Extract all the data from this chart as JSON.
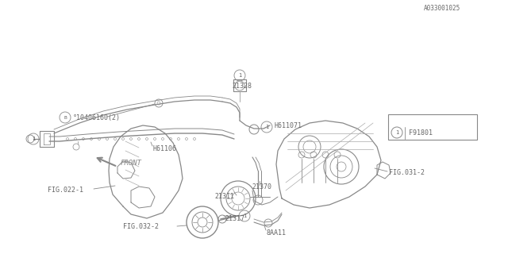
{
  "bg_color": "#ffffff",
  "line_color": "#aaaaaa",
  "dark_line": "#888888",
  "text_color": "#666666",
  "figsize": [
    6.4,
    3.2
  ],
  "dpi": 100,
  "labels": {
    "FIG032_2": "FIG.032-2",
    "8AA11": "8AA11",
    "21317": "21317",
    "FIG022_1": "FIG.022-1",
    "21311": "21311",
    "21370": "21370",
    "FIG031_2": "FIG.031-2",
    "FRONT": "FRONT",
    "H61106": "H61106",
    "B010406160": "°10406160(2)",
    "21328": "21328",
    "H611071": "H611071",
    "F91801": "F91801",
    "catalog": "A033001025"
  }
}
